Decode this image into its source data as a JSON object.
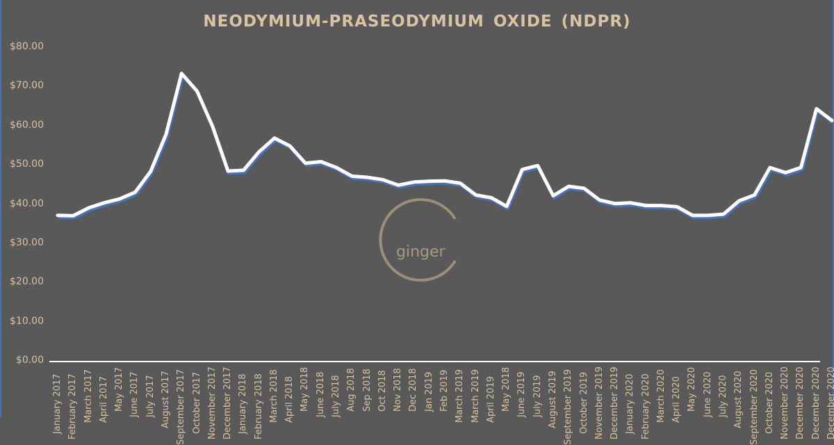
{
  "chart_data": {
    "type": "line",
    "title": "NEODYMIUM-PRASEODYMIUM  OXIDE (NDPR)",
    "xlabel": "",
    "ylabel": "",
    "ylim": [
      0,
      80
    ],
    "y_ticks": [
      "$0.00",
      "$10.00",
      "$20.00",
      "$30.00",
      "$40.00",
      "$50.00",
      "$60.00",
      "$70.00",
      "$80.00"
    ],
    "grid": false,
    "legend": null,
    "drop_lines": true,
    "categories": [
      "January 2017",
      "February 2017",
      "March 2017",
      "April 2017",
      "May 2017",
      "June 2017",
      "July 2017",
      "August 2017",
      "September 2017",
      "October 2017",
      "November 2017",
      "December 2017",
      "January 2018",
      "February 2018",
      "March 2018",
      "April 2018",
      "May 2018",
      "June 2018",
      "July 2018",
      "Aug 2018",
      "Sep 2018",
      "Oct 2018",
      "Nov 2018",
      "Dec 2018",
      "Jan 2019",
      "Feb 2019",
      "March 2019",
      "March 2019",
      "April 2019",
      "May 2018",
      "June 2019",
      "July 2019",
      "August 2019",
      "September 2019",
      "October 2019",
      "November 2019",
      "December 2019",
      "January 2020",
      "February 2020",
      "March 2020",
      "April 2020",
      "May 2020",
      "June 2020",
      "July 2020",
      "August 2020",
      "September 2020",
      "October 2020",
      "November 2020",
      "December 2020",
      "December 2020",
      "December 2020"
    ],
    "values": [
      37.3,
      37.2,
      39.2,
      40.5,
      41.5,
      43.2,
      48.5,
      58,
      73.5,
      69,
      60,
      48.6,
      48.8,
      53.5,
      57,
      55,
      50.6,
      51,
      49.5,
      47.3,
      47,
      46.4,
      45,
      45.8,
      46,
      46.1,
      45.5,
      42.5,
      41.8,
      39.6,
      49,
      50,
      42.3,
      44.7,
      44.2,
      41.2,
      40.3,
      40.5,
      39.8,
      39.8,
      39.5,
      37.3,
      37.3,
      37.6,
      41,
      42.5,
      49.5,
      48.2,
      49.5,
      64.5,
      61.5
    ],
    "line_color": "#ffffff",
    "shadow_color": "#4a72b8"
  },
  "title": "NEODYMIUM-PRASEODYMIUM  OXIDE (NDPR)",
  "watermark": "ginger",
  "colors": {
    "background": "#595959",
    "text": "#d9c3a0",
    "border": "#4a72b8"
  }
}
